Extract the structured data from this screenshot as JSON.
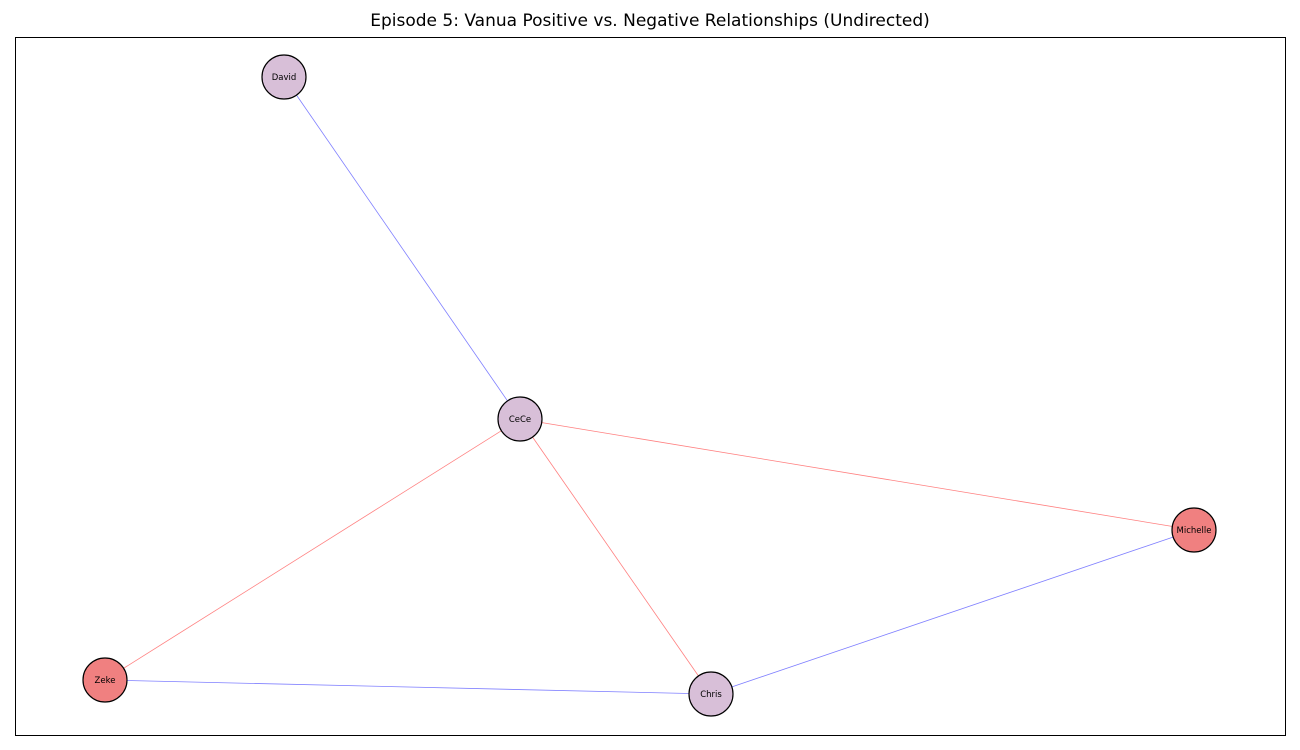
{
  "title": "Episode 5: Vanua Positive vs. Negative Relationships (Undirected)",
  "colors": {
    "positive_edge": "#0000ff",
    "negative_edge": "#ff0000",
    "node_default": "#d8bfd8",
    "node_highlight": "#f08080",
    "node_border": "#000000"
  },
  "nodes": [
    {
      "id": "David",
      "label": "David",
      "color": "node_default"
    },
    {
      "id": "CeCe",
      "label": "CeCe",
      "color": "node_default"
    },
    {
      "id": "Michelle",
      "label": "Michelle",
      "color": "node_highlight"
    },
    {
      "id": "Zeke",
      "label": "Zeke",
      "color": "node_highlight"
    },
    {
      "id": "Chris",
      "label": "Chris",
      "color": "node_default"
    }
  ],
  "edges": [
    {
      "source": "David",
      "target": "CeCe",
      "type": "positive"
    },
    {
      "source": "CeCe",
      "target": "Michelle",
      "type": "negative"
    },
    {
      "source": "CeCe",
      "target": "Zeke",
      "type": "negative"
    },
    {
      "source": "CeCe",
      "target": "Chris",
      "type": "negative"
    },
    {
      "source": "Zeke",
      "target": "Chris",
      "type": "positive"
    },
    {
      "source": "Chris",
      "target": "Michelle",
      "type": "positive"
    }
  ]
}
